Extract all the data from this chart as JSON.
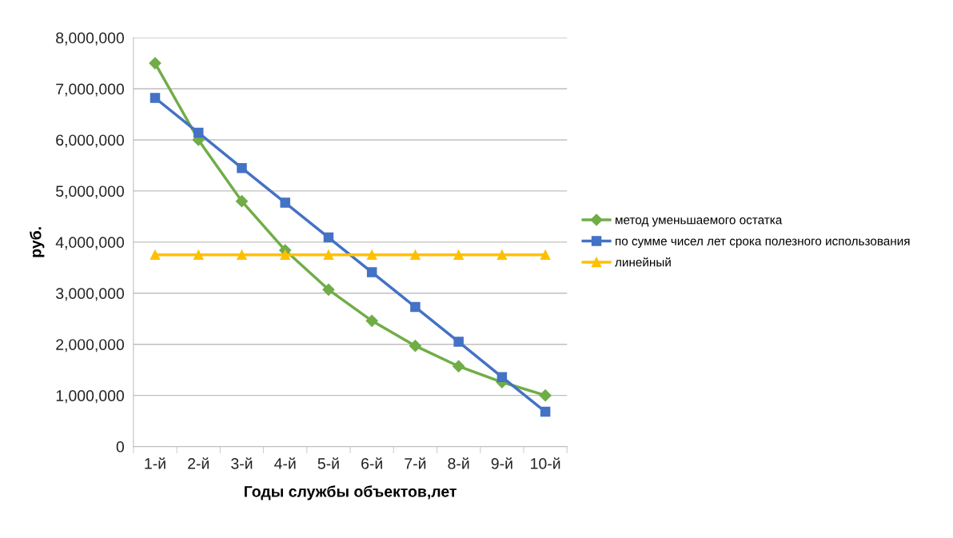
{
  "chart_data": {
    "type": "line",
    "xlabel": "Годы службы объектов,лет",
    "ylabel": "руб.",
    "categories": [
      "1-й",
      "2-й",
      "3-й",
      "4-й",
      "5-й",
      "6-й",
      "7-й",
      "8-й",
      "9-й",
      "10-й"
    ],
    "series": [
      {
        "name": "метод уменьшаемого остатка",
        "color": "#70ad47",
        "marker": "diamond",
        "values": [
          7500000,
          6000000,
          4800000,
          3840000,
          3070000,
          2460000,
          1970000,
          1570000,
          1260000,
          1000000
        ]
      },
      {
        "name": "по сумме чисел лет срока полезного использования",
        "color": "#4472c4",
        "marker": "square",
        "values": [
          6820000,
          6140000,
          5450000,
          4770000,
          4090000,
          3410000,
          2730000,
          2050000,
          1360000,
          680000
        ]
      },
      {
        "name": "линейный",
        "color": "#ffc000",
        "marker": "triangle",
        "values": [
          3750000,
          3750000,
          3750000,
          3750000,
          3750000,
          3750000,
          3750000,
          3750000,
          3750000,
          3750000
        ]
      }
    ],
    "ylim": [
      0,
      8000000
    ],
    "yticks": [
      0,
      {
        "value": 1000000,
        "label": "1,000,000"
      },
      {
        "value": 2000000,
        "label": "2,000,000"
      },
      {
        "value": 3000000,
        "label": "3,000,000"
      },
      {
        "value": 4000000,
        "label": "4,000,000"
      },
      {
        "value": 5000000,
        "label": "5,000,000"
      },
      {
        "value": 6000000,
        "label": "6,000,000"
      },
      {
        "value": 7000000,
        "label": "7,000,000"
      },
      {
        "value": 8000000,
        "label": "8,000,000"
      }
    ],
    "grid": "y",
    "legend": "right",
    "line_style": "solid"
  }
}
